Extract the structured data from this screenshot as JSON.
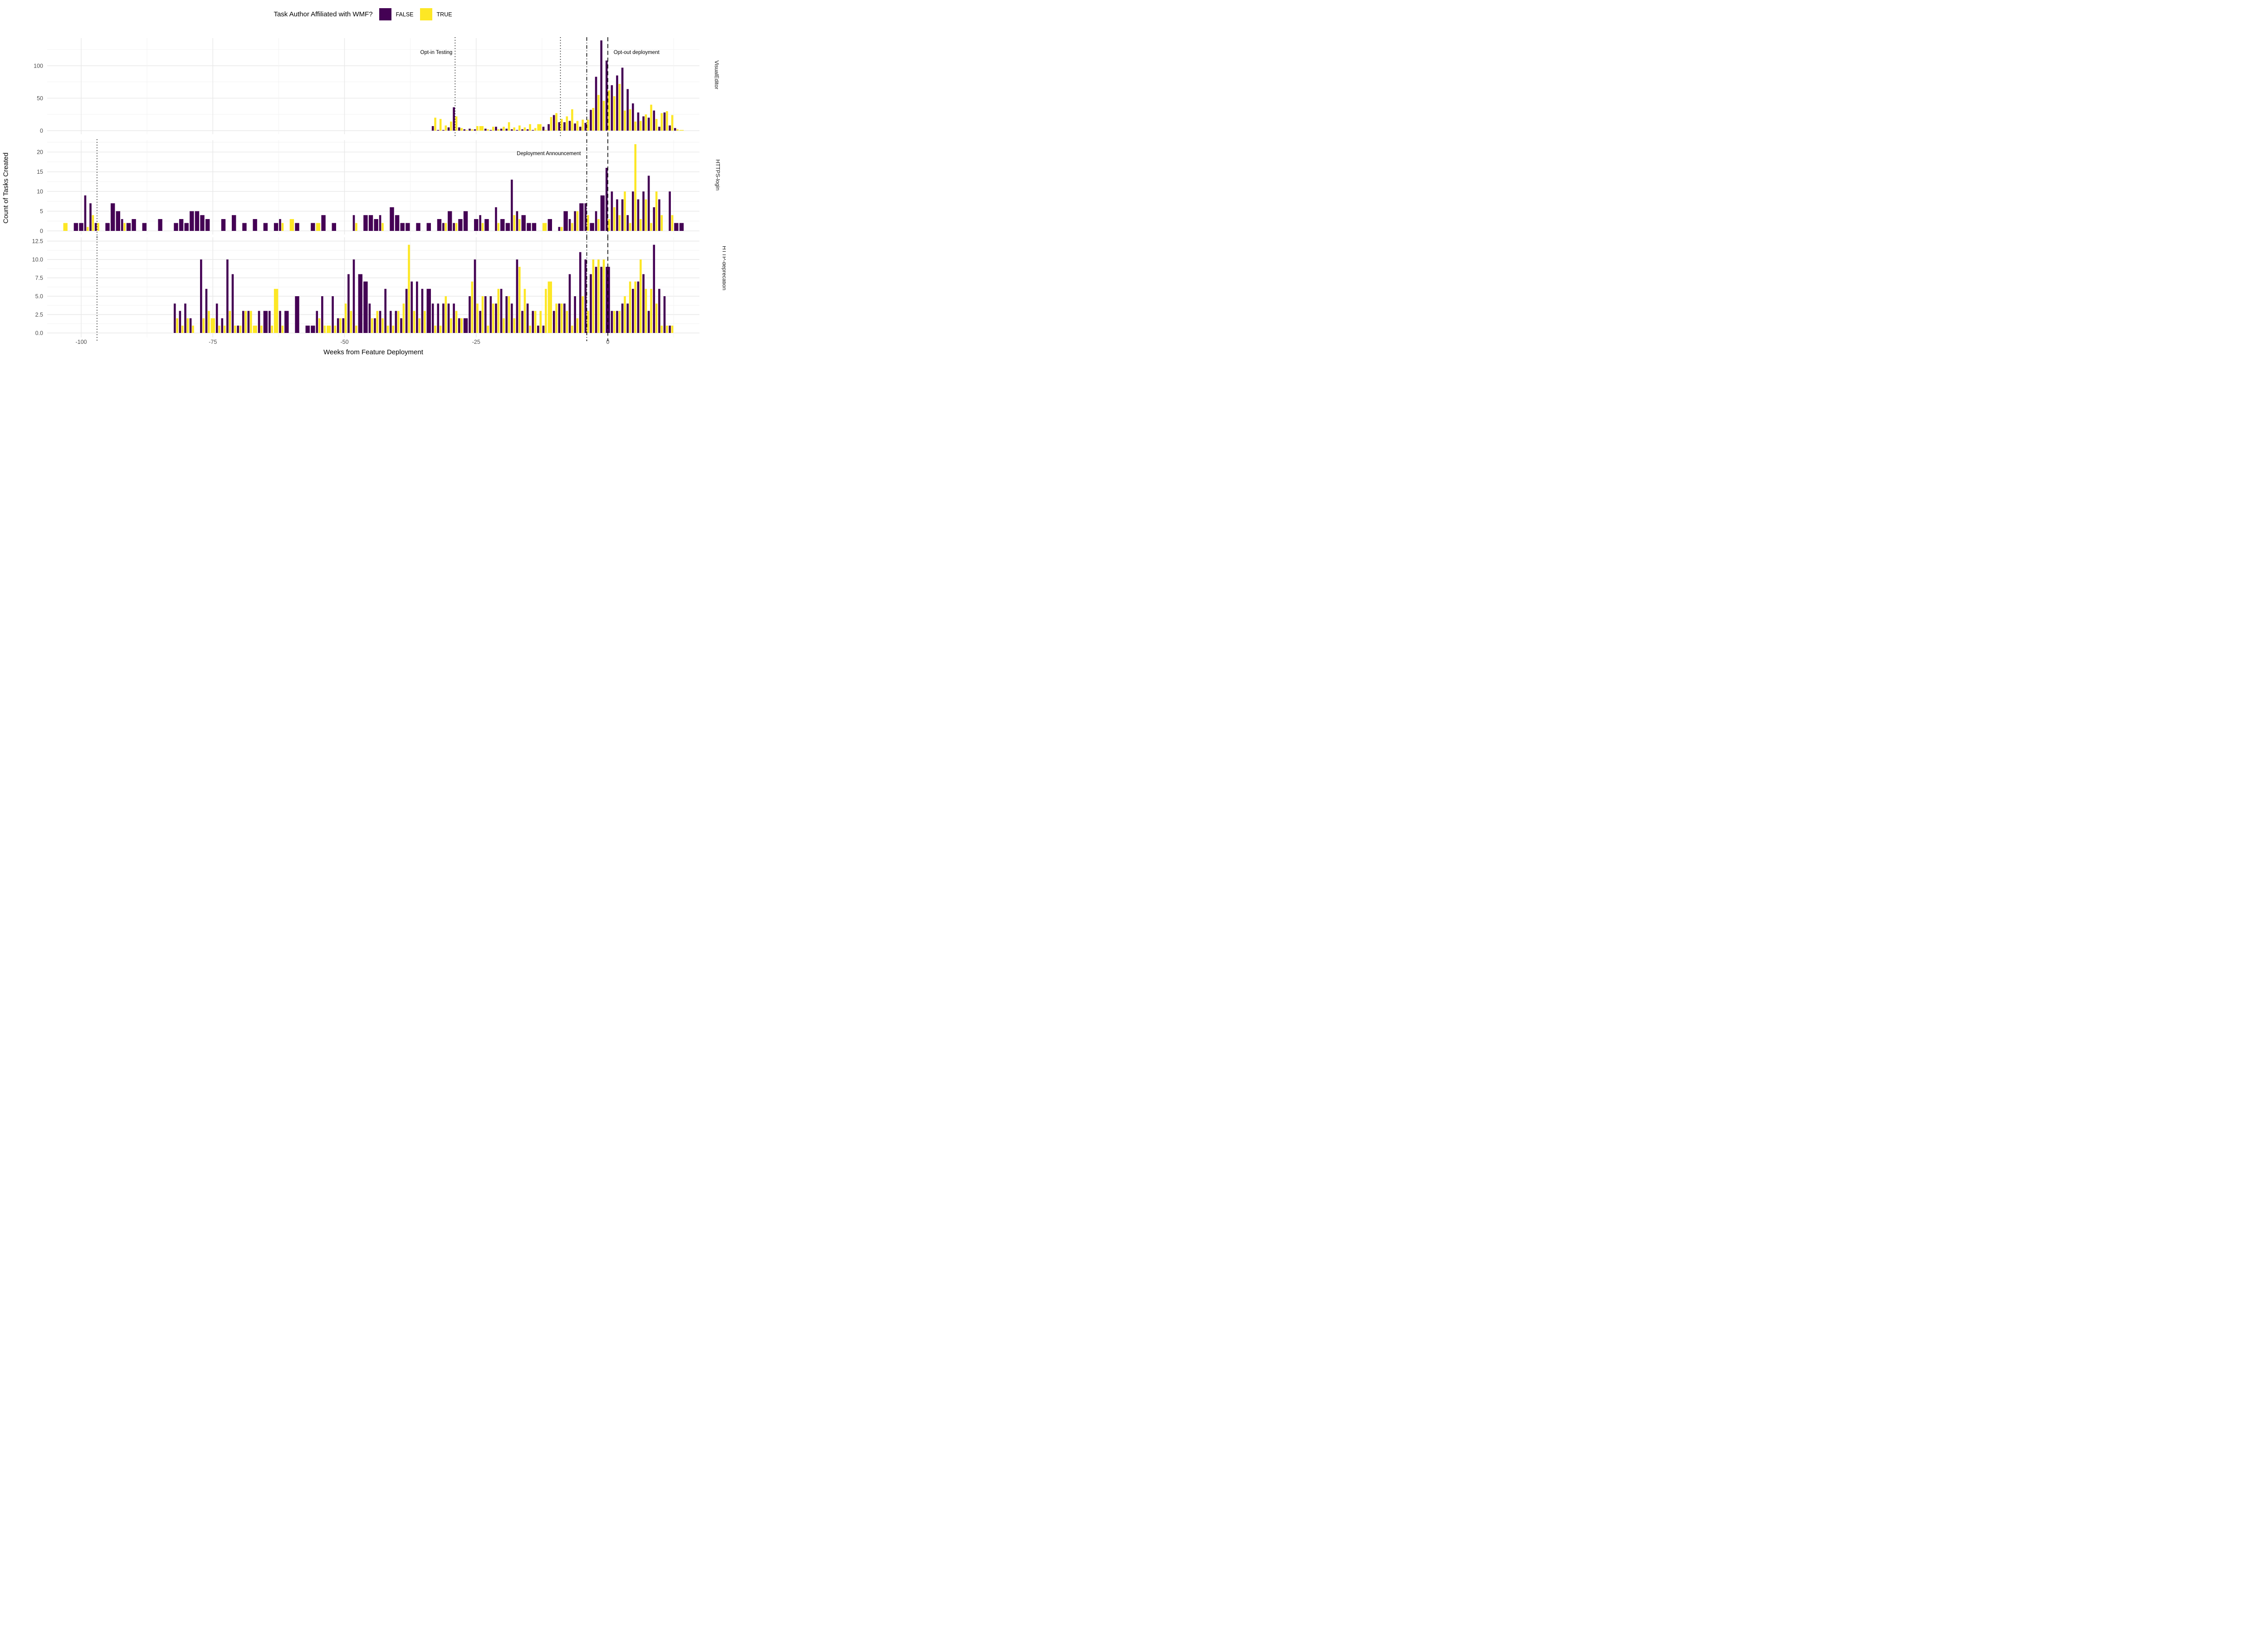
{
  "chart_data": {
    "type": "bar",
    "subtype": "grouped-faceted-histogram",
    "xlabel": "Weeks from Feature Deployment",
    "ylabel": "Count of Tasks Created",
    "x_ticks": [
      -100,
      -75,
      -50,
      -25,
      0
    ],
    "x_range": [
      -106.5,
      17.4
    ],
    "grid": true,
    "legend": {
      "title": "Task Author Affiliated with WMF?",
      "position": "top",
      "items": [
        {
          "label": "FALSE",
          "color": "#440154"
        },
        {
          "label": "TRUE",
          "color": "#FDE725"
        }
      ]
    },
    "series_key": "bars entries are [week, FALSE_count, TRUE_count]",
    "facets": [
      {
        "name": "VisualEditor",
        "ytick_labels": [
          "0",
          "50",
          "100"
        ],
        "ytick_values": [
          0,
          50,
          100
        ],
        "ylim": [
          0,
          142
        ],
        "vlines": [
          {
            "x": -29,
            "style": "dotted"
          },
          {
            "x": -9,
            "style": "dotted"
          },
          {
            "x": -4,
            "style": "dashdot"
          },
          {
            "x": 0,
            "style": "dashed"
          }
        ],
        "annotations": [
          {
            "text": "Opt-in Testing",
            "x": -29,
            "y": 121,
            "anchor": "end"
          },
          {
            "text": "Opt-out deployment",
            "x": 0.5,
            "y": 121,
            "anchor": "start"
          }
        ],
        "bars": [
          [
            -33,
            7,
            20
          ],
          [
            -32,
            1,
            18
          ],
          [
            -31,
            1,
            8
          ],
          [
            -30,
            5,
            14
          ],
          [
            -29,
            36,
            22
          ],
          [
            -28,
            5,
            4
          ],
          [
            -27,
            2,
            1
          ],
          [
            -26,
            3,
            2
          ],
          [
            -25,
            2,
            7
          ],
          [
            -24,
            0,
            7
          ],
          [
            -23,
            3,
            2
          ],
          [
            -22,
            1,
            6
          ],
          [
            -21,
            6,
            2
          ],
          [
            -20,
            3,
            6
          ],
          [
            -19,
            3,
            13
          ],
          [
            -18,
            2,
            5
          ],
          [
            -17,
            1,
            8
          ],
          [
            -16,
            2,
            5
          ],
          [
            -15,
            2,
            10
          ],
          [
            -14,
            1,
            4
          ],
          [
            -13,
            0,
            10
          ],
          [
            -12,
            6,
            1
          ],
          [
            -11,
            10,
            21
          ],
          [
            -10,
            24,
            27
          ],
          [
            -9,
            13,
            18
          ],
          [
            -8,
            13,
            22
          ],
          [
            -7,
            15,
            33
          ],
          [
            -6,
            11,
            15
          ],
          [
            -5,
            6,
            17
          ],
          [
            -4,
            12,
            17
          ],
          [
            -3,
            32,
            35
          ],
          [
            -2,
            83,
            55
          ],
          [
            -1,
            139,
            46
          ],
          [
            0,
            108,
            62
          ],
          [
            1,
            70,
            53
          ],
          [
            2,
            85,
            72
          ],
          [
            3,
            97,
            31
          ],
          [
            4,
            64,
            33
          ],
          [
            5,
            42,
            14
          ],
          [
            6,
            28,
            15
          ],
          [
            7,
            22,
            25
          ],
          [
            8,
            20,
            40
          ],
          [
            9,
            31,
            18
          ],
          [
            10,
            6,
            27
          ],
          [
            11,
            28,
            30
          ],
          [
            12,
            8,
            24
          ],
          [
            13,
            4,
            2
          ],
          [
            14,
            0,
            1
          ]
        ]
      },
      {
        "name": "HTTPS-login",
        "ytick_labels": [
          "0",
          "5",
          "10",
          "15",
          "20"
        ],
        "ytick_values": [
          0,
          5,
          10,
          15,
          20
        ],
        "ylim": [
          0,
          23
        ],
        "vlines": [
          {
            "x": -97,
            "style": "dotted"
          },
          {
            "x": -4,
            "style": "dashdot"
          },
          {
            "x": 0,
            "style": "dashed"
          }
        ],
        "annotations": [
          {
            "text": "Deployment Announcement",
            "x": -4.6,
            "y": 19.7,
            "anchor": "end"
          }
        ],
        "bars": [
          [
            -103,
            0,
            2
          ],
          [
            -101,
            2,
            0
          ],
          [
            -100,
            2,
            0
          ],
          [
            -99,
            9,
            1
          ],
          [
            -98,
            7,
            4
          ],
          [
            -97,
            2,
            2
          ],
          [
            -95,
            2,
            0
          ],
          [
            -94,
            7,
            0
          ],
          [
            -93,
            5,
            0
          ],
          [
            -92,
            3,
            2
          ],
          [
            -91,
            2,
            0
          ],
          [
            -90,
            3,
            0
          ],
          [
            -88,
            2,
            0
          ],
          [
            -85,
            3,
            0
          ],
          [
            -82,
            2,
            0
          ],
          [
            -81,
            3,
            0
          ],
          [
            -80,
            2,
            0
          ],
          [
            -79,
            5,
            0
          ],
          [
            -78,
            5,
            0
          ],
          [
            -77,
            4,
            0
          ],
          [
            -76,
            3,
            0
          ],
          [
            -73,
            3,
            0
          ],
          [
            -71,
            4,
            0
          ],
          [
            -69,
            2,
            0
          ],
          [
            -67,
            3,
            0
          ],
          [
            -65,
            2,
            0
          ],
          [
            -63,
            2,
            0
          ],
          [
            -62,
            3,
            2
          ],
          [
            -60,
            0,
            3
          ],
          [
            -59,
            2,
            0
          ],
          [
            -56,
            2,
            0
          ],
          [
            -55,
            0,
            2
          ],
          [
            -54,
            4,
            0
          ],
          [
            -52,
            2,
            0
          ],
          [
            -48,
            4,
            2
          ],
          [
            -46,
            4,
            0
          ],
          [
            -45,
            4,
            0
          ],
          [
            -44,
            3,
            0
          ],
          [
            -43,
            4,
            2
          ],
          [
            -41,
            6,
            0
          ],
          [
            -40,
            4,
            0
          ],
          [
            -39,
            2,
            0
          ],
          [
            -38,
            2,
            0
          ],
          [
            -36,
            2,
            0
          ],
          [
            -34,
            2,
            0
          ],
          [
            -32,
            3,
            0
          ],
          [
            -31,
            2,
            2
          ],
          [
            -30,
            5,
            0
          ],
          [
            -29,
            2,
            2
          ],
          [
            -28,
            3,
            0
          ],
          [
            -27,
            5,
            0
          ],
          [
            -25,
            3,
            0
          ],
          [
            -24,
            4,
            2
          ],
          [
            -23,
            3,
            0
          ],
          [
            -21,
            6,
            2
          ],
          [
            -20,
            3,
            0
          ],
          [
            -19,
            2,
            0
          ],
          [
            -18,
            13,
            4
          ],
          [
            -17,
            5,
            3
          ],
          [
            -16,
            4,
            0
          ],
          [
            -15,
            2,
            0
          ],
          [
            -14,
            2,
            0
          ],
          [
            -12,
            0,
            2
          ],
          [
            -11,
            3,
            0
          ],
          [
            -9,
            1,
            1
          ],
          [
            -8,
            5,
            0
          ],
          [
            -7,
            3,
            2
          ],
          [
            -6,
            5,
            5
          ],
          [
            -5,
            7,
            0
          ],
          [
            -4,
            7,
            4
          ],
          [
            -3,
            2,
            0
          ],
          [
            -2,
            5,
            3
          ],
          [
            -1,
            9,
            0
          ],
          [
            0,
            16,
            3
          ],
          [
            1,
            10,
            6
          ],
          [
            2,
            8,
            4
          ],
          [
            3,
            8,
            10
          ],
          [
            4,
            4,
            2
          ],
          [
            5,
            10,
            22
          ],
          [
            6,
            8,
            3
          ],
          [
            7,
            10,
            8
          ],
          [
            8,
            14,
            2
          ],
          [
            9,
            6,
            10
          ],
          [
            10,
            8,
            4
          ],
          [
            12,
            10,
            4
          ],
          [
            13,
            2,
            0
          ],
          [
            14,
            2,
            0
          ]
        ]
      },
      {
        "name": "HTTP-deprecation",
        "ytick_labels": [
          "0.0",
          "2.5",
          "5.0",
          "7.5",
          "10.0",
          "12.5"
        ],
        "ytick_values": [
          0,
          2.5,
          5,
          7.5,
          10,
          12.5
        ],
        "ylim": [
          0,
          13
        ],
        "vlines": [
          {
            "x": -97,
            "style": "dotted"
          },
          {
            "x": -4,
            "style": "dashdot"
          },
          {
            "x": 0,
            "style": "dashed"
          }
        ],
        "annotations": [],
        "bars": [
          [
            -82,
            4,
            2
          ],
          [
            -81,
            3,
            1
          ],
          [
            -80,
            4,
            2
          ],
          [
            -79,
            2,
            1
          ],
          [
            -77,
            10,
            2
          ],
          [
            -76,
            6,
            3
          ],
          [
            -75,
            0,
            2
          ],
          [
            -74,
            4,
            1
          ],
          [
            -73,
            2,
            1
          ],
          [
            -72,
            10,
            3
          ],
          [
            -71,
            8,
            1
          ],
          [
            -70,
            1,
            1
          ],
          [
            -69,
            3,
            3
          ],
          [
            -68,
            3,
            3
          ],
          [
            -67,
            0,
            1
          ],
          [
            -66,
            3,
            1
          ],
          [
            -65,
            3,
            0
          ],
          [
            -64,
            3,
            1
          ],
          [
            -63,
            0,
            6
          ],
          [
            -62,
            3,
            1
          ],
          [
            -61,
            3,
            0
          ],
          [
            -59,
            5,
            0
          ],
          [
            -57,
            1,
            0
          ],
          [
            -56,
            1,
            0
          ],
          [
            -55,
            3,
            2
          ],
          [
            -54,
            5,
            1
          ],
          [
            -53,
            0,
            1
          ],
          [
            -52,
            5,
            1
          ],
          [
            -51,
            2,
            2
          ],
          [
            -50,
            2,
            4
          ],
          [
            -49,
            8,
            3
          ],
          [
            -48,
            10,
            1
          ],
          [
            -47,
            8,
            0
          ],
          [
            -46,
            7,
            0
          ],
          [
            -45,
            4,
            2
          ],
          [
            -44,
            2,
            3
          ],
          [
            -43,
            3,
            2
          ],
          [
            -42,
            6,
            1
          ],
          [
            -41,
            3,
            1
          ],
          [
            -40,
            3,
            3
          ],
          [
            -39,
            2,
            4
          ],
          [
            -38,
            6,
            12
          ],
          [
            -37,
            7,
            3
          ],
          [
            -36,
            7,
            2
          ],
          [
            -35,
            6,
            3
          ],
          [
            -34,
            6,
            0
          ],
          [
            -33,
            4,
            1
          ],
          [
            -32,
            4,
            1
          ],
          [
            -31,
            4,
            5
          ],
          [
            -30,
            4,
            2
          ],
          [
            -29,
            4,
            3
          ],
          [
            -28,
            2,
            2
          ],
          [
            -27,
            2,
            0
          ],
          [
            -26,
            5,
            7
          ],
          [
            -25,
            10,
            4
          ],
          [
            -24,
            3,
            5
          ],
          [
            -23,
            5,
            1
          ],
          [
            -22,
            5,
            4
          ],
          [
            -21,
            4,
            6
          ],
          [
            -20,
            6,
            2
          ],
          [
            -19,
            5,
            5
          ],
          [
            -18,
            4,
            2
          ],
          [
            -17,
            10,
            9
          ],
          [
            -16,
            3,
            6
          ],
          [
            -15,
            4,
            1
          ],
          [
            -14,
            3,
            3
          ],
          [
            -13,
            1,
            3
          ],
          [
            -12,
            1,
            6
          ],
          [
            -11,
            0,
            7
          ],
          [
            -10,
            3,
            4
          ],
          [
            -9,
            4,
            4
          ],
          [
            -8,
            4,
            3
          ],
          [
            -7,
            8,
            1
          ],
          [
            -6,
            5,
            2
          ],
          [
            -5,
            11,
            5
          ],
          [
            -4,
            10,
            3
          ],
          [
            -3,
            8,
            10
          ],
          [
            -2,
            9,
            10
          ],
          [
            -1,
            9,
            10
          ],
          [
            0,
            9,
            0
          ],
          [
            1,
            3,
            3
          ],
          [
            2,
            3,
            3
          ],
          [
            3,
            4,
            5
          ],
          [
            4,
            4,
            7
          ],
          [
            5,
            6,
            7
          ],
          [
            6,
            7,
            10
          ],
          [
            7,
            8,
            6
          ],
          [
            8,
            3,
            6
          ],
          [
            9,
            12,
            4
          ],
          [
            10,
            6,
            1
          ],
          [
            11,
            5,
            1
          ],
          [
            12,
            1,
            1
          ]
        ]
      }
    ],
    "colors": {
      "false_bar": "#440154",
      "true_bar": "#FDE725",
      "grid_major": "#E8E8E8",
      "grid_minor": "#F2F2F2",
      "tick_text": "#4d4d4d",
      "annotation_line": "#000000"
    }
  }
}
